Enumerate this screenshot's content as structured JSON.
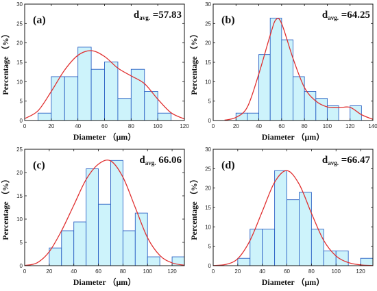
{
  "colors": {
    "bar_fill": "#cdf3fb",
    "bar_stroke": "#2b61c4",
    "curve": "#e03030",
    "axis": "#111111"
  },
  "chart_data": [
    {
      "type": "bar",
      "panel_label": "(a)",
      "avg_prefix": "d",
      "avg_sub": "avg.",
      "avg_value": "=57.83",
      "xlabel": "Diameter （μm）",
      "ylabel": "Percentage （%）",
      "xlim": [
        0,
        120
      ],
      "ylim": [
        0,
        30
      ],
      "xticks": [
        0,
        20,
        40,
        60,
        80,
        100,
        120
      ],
      "yticks": [
        0,
        5,
        10,
        15,
        20,
        25,
        30
      ],
      "bin_edges": [
        10,
        20,
        30,
        40,
        50,
        60,
        70,
        80,
        90,
        100,
        110
      ],
      "values": [
        1.9,
        11.3,
        11.3,
        18.9,
        13.2,
        15.1,
        5.7,
        13.2,
        7.5,
        1.9
      ],
      "fit_curve": [
        [
          0,
          0.5
        ],
        [
          10,
          2.5
        ],
        [
          20,
          7.5
        ],
        [
          30,
          13.0
        ],
        [
          40,
          16.8
        ],
        [
          50,
          18.0
        ],
        [
          60,
          16.5
        ],
        [
          70,
          13.5
        ],
        [
          80,
          11.5
        ],
        [
          90,
          9.5
        ],
        [
          100,
          5.5
        ],
        [
          110,
          2.0
        ],
        [
          120,
          0.4
        ]
      ]
    },
    {
      "type": "bar",
      "panel_label": "(b)",
      "avg_prefix": "d",
      "avg_sub": "avg.",
      "avg_value": "=64.25",
      "xlabel": "Diameter （μm）",
      "ylabel": "Percentage （%）",
      "xlim": [
        0,
        140
      ],
      "ylim": [
        0,
        30
      ],
      "xticks": [
        0,
        20,
        40,
        60,
        80,
        100,
        120,
        140
      ],
      "yticks": [
        0,
        5,
        10,
        15,
        20,
        25,
        30
      ],
      "bin_edges": [
        20,
        30,
        40,
        50,
        60,
        70,
        80,
        90,
        100,
        110,
        120,
        130
      ],
      "values": [
        1.9,
        1.9,
        17.0,
        26.4,
        20.8,
        11.3,
        7.5,
        5.7,
        3.8,
        0,
        3.8
      ],
      "fit_curve": [
        [
          10,
          0.1
        ],
        [
          20,
          0.8
        ],
        [
          30,
          3.5
        ],
        [
          40,
          12.0
        ],
        [
          50,
          22.0
        ],
        [
          55,
          26.0
        ],
        [
          60,
          25.0
        ],
        [
          70,
          16.0
        ],
        [
          80,
          8.5
        ],
        [
          90,
          5.0
        ],
        [
          100,
          3.5
        ],
        [
          110,
          3.3
        ],
        [
          120,
          3.4
        ],
        [
          130,
          1.5
        ],
        [
          140,
          0.3
        ]
      ]
    },
    {
      "type": "bar",
      "panel_label": "(c)",
      "avg_prefix": "d",
      "avg_sub": "avg.",
      "avg_value": "66.06",
      "xlabel": "Diameter （μm）",
      "ylabel": "Percentage （%）",
      "xlim": [
        0,
        130
      ],
      "ylim": [
        0,
        25
      ],
      "xticks": [
        0,
        20,
        40,
        60,
        80,
        100,
        120
      ],
      "yticks": [
        0,
        5,
        10,
        15,
        20,
        25
      ],
      "bin_edges": [
        20,
        30,
        40,
        50,
        60,
        70,
        80,
        90,
        100,
        110,
        120,
        130
      ],
      "values": [
        3.8,
        7.5,
        9.4,
        20.8,
        13.2,
        22.6,
        7.5,
        11.3,
        1.9,
        0,
        1.9
      ],
      "fit_curve": [
        [
          0,
          0.05
        ],
        [
          10,
          0.6
        ],
        [
          20,
          3.0
        ],
        [
          30,
          7.5
        ],
        [
          40,
          13.0
        ],
        [
          50,
          18.5
        ],
        [
          60,
          21.8
        ],
        [
          70,
          22.5
        ],
        [
          80,
          19.0
        ],
        [
          90,
          12.5
        ],
        [
          100,
          6.0
        ],
        [
          110,
          2.2
        ],
        [
          120,
          0.6
        ],
        [
          130,
          0.1
        ]
      ]
    },
    {
      "type": "bar",
      "panel_label": "(d)",
      "avg_prefix": "d",
      "avg_sub": "avg.",
      "avg_value": "=66.47",
      "xlabel": "Diameter （μm）",
      "ylabel": "Percentage （%）",
      "xlim": [
        0,
        130
      ],
      "ylim": [
        0,
        30
      ],
      "xticks": [
        0,
        20,
        40,
        60,
        80,
        100,
        120
      ],
      "yticks": [
        0,
        5,
        10,
        15,
        20,
        25,
        30
      ],
      "bin_edges": [
        20,
        30,
        40,
        50,
        60,
        70,
        80,
        90,
        100,
        110,
        120,
        130
      ],
      "values": [
        1.9,
        9.4,
        9.4,
        24.5,
        17.0,
        18.9,
        9.4,
        3.8,
        3.8,
        0,
        1.9
      ],
      "fit_curve": [
        [
          0,
          0.05
        ],
        [
          10,
          0.3
        ],
        [
          20,
          1.8
        ],
        [
          30,
          6.5
        ],
        [
          40,
          14.0
        ],
        [
          50,
          21.5
        ],
        [
          60,
          24.5
        ],
        [
          70,
          21.0
        ],
        [
          80,
          13.5
        ],
        [
          90,
          6.5
        ],
        [
          100,
          2.5
        ],
        [
          110,
          0.8
        ],
        [
          120,
          0.2
        ],
        [
          130,
          0.05
        ]
      ]
    }
  ]
}
